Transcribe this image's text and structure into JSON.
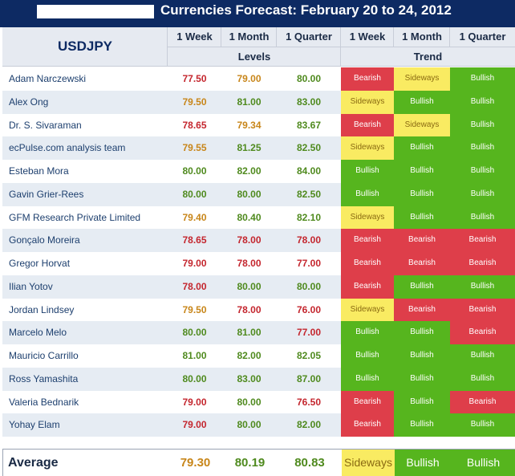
{
  "title": "Currencies Forecast: February 20 to 24, 2012",
  "pair": "USDJPY",
  "columns": [
    "1 Week",
    "1 Month",
    "1 Quarter",
    "1 Week",
    "1 Month",
    "1 Quarter"
  ],
  "groups": {
    "levels": "Levels",
    "trend": "Trend"
  },
  "colors": {
    "bearish": "#de3e4a",
    "sideways": "#f9eb62",
    "bullish": "#56b51e",
    "banner": "#0d2a63"
  },
  "rows": [
    {
      "name": "Adam Narczewski",
      "levels": [
        "77.50",
        "79.00",
        "80.00"
      ],
      "trend": [
        "Bearish",
        "Sideways",
        "Bullish"
      ]
    },
    {
      "name": "Alex Ong",
      "levels": [
        "79.50",
        "81.00",
        "83.00"
      ],
      "trend": [
        "Sideways",
        "Bullish",
        "Bullish"
      ]
    },
    {
      "name": "Dr. S. Sivaraman",
      "levels": [
        "78.65",
        "79.34",
        "83.67"
      ],
      "trend": [
        "Bearish",
        "Sideways",
        "Bullish"
      ]
    },
    {
      "name": "ecPulse.com analysis team",
      "levels": [
        "79.55",
        "81.25",
        "82.50"
      ],
      "trend": [
        "Sideways",
        "Bullish",
        "Bullish"
      ]
    },
    {
      "name": "Esteban Mora",
      "levels": [
        "80.00",
        "82.00",
        "84.00"
      ],
      "trend": [
        "Bullish",
        "Bullish",
        "Bullish"
      ]
    },
    {
      "name": "Gavin Grier-Rees",
      "levels": [
        "80.00",
        "80.00",
        "82.50"
      ],
      "trend": [
        "Bullish",
        "Bullish",
        "Bullish"
      ]
    },
    {
      "name": "GFM Research Private Limited",
      "levels": [
        "79.40",
        "80.40",
        "82.10"
      ],
      "trend": [
        "Sideways",
        "Bullish",
        "Bullish"
      ]
    },
    {
      "name": "Gonçalo Moreira",
      "levels": [
        "78.65",
        "78.00",
        "78.00"
      ],
      "trend": [
        "Bearish",
        "Bearish",
        "Bearish"
      ]
    },
    {
      "name": "Gregor Horvat",
      "levels": [
        "79.00",
        "78.00",
        "77.00"
      ],
      "trend": [
        "Bearish",
        "Bearish",
        "Bearish"
      ]
    },
    {
      "name": "Ilian Yotov",
      "levels": [
        "78.00",
        "80.00",
        "80.00"
      ],
      "trend": [
        "Bearish",
        "Bullish",
        "Bullish"
      ]
    },
    {
      "name": "Jordan Lindsey",
      "levels": [
        "79.50",
        "78.00",
        "76.00"
      ],
      "trend": [
        "Sideways",
        "Bearish",
        "Bearish"
      ]
    },
    {
      "name": "Marcelo Melo",
      "levels": [
        "80.00",
        "81.00",
        "77.00"
      ],
      "trend": [
        "Bullish",
        "Bullish",
        "Bearish"
      ]
    },
    {
      "name": "Mauricio Carrillo",
      "levels": [
        "81.00",
        "82.00",
        "82.05"
      ],
      "trend": [
        "Bullish",
        "Bullish",
        "Bullish"
      ]
    },
    {
      "name": "Ross Yamashita",
      "levels": [
        "80.00",
        "83.00",
        "87.00"
      ],
      "trend": [
        "Bullish",
        "Bullish",
        "Bullish"
      ]
    },
    {
      "name": "Valeria Bednarik",
      "levels": [
        "79.00",
        "80.00",
        "76.50"
      ],
      "trend": [
        "Bearish",
        "Bullish",
        "Bearish"
      ]
    },
    {
      "name": "Yohay Elam",
      "levels": [
        "79.00",
        "80.00",
        "82.00"
      ],
      "trend": [
        "Bearish",
        "Bullish",
        "Bullish"
      ]
    }
  ],
  "average": {
    "label": "Average",
    "levels": [
      "79.30",
      "80.19",
      "80.83"
    ],
    "trend": [
      "Sideways",
      "Bullish",
      "Bullish"
    ]
  }
}
